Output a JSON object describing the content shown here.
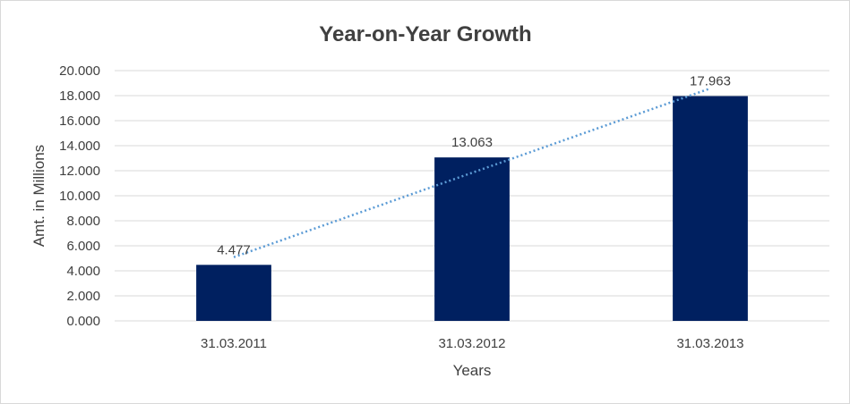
{
  "chart_data": {
    "type": "bar",
    "title": "Year-on-Year Growth",
    "xlabel": "Years",
    "ylabel": "Amt. in Millions",
    "categories": [
      "31.03.2011",
      "31.03.2012",
      "31.03.2013"
    ],
    "values": [
      4.477,
      13.063,
      17.963
    ],
    "data_labels": [
      "4.477",
      "13.063",
      "17.963"
    ],
    "ylim": [
      0,
      20
    ],
    "yticks": [
      0,
      2,
      4,
      6,
      8,
      10,
      12,
      14,
      16,
      18,
      20
    ],
    "ytick_labels": [
      "0.000",
      "2.000",
      "4.000",
      "6.000",
      "8.000",
      "10.000",
      "12.000",
      "14.000",
      "16.000",
      "18.000",
      "20.000"
    ],
    "grid": true,
    "legend": "none",
    "trendline": "linear",
    "bar_color": "#002060",
    "trendline_color": "#5B9BD5"
  }
}
